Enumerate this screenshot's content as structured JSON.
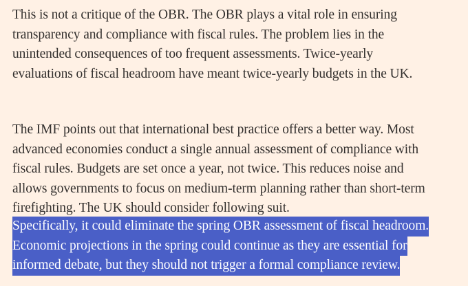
{
  "article": {
    "paragraphs": [
      {
        "lines": [
          "This is not a critique of the OBR. The OBR plays a vital role in ensuring",
          "transparency and compliance with fiscal rules. The problem lies in the",
          "unintended consequences of too frequent assessments. Twice-yearly",
          "evaluations of fiscal headroom have meant twice-yearly budgets in the UK."
        ],
        "selected": false
      },
      {
        "lines": [
          "The IMF points out that international best practice offers a better way. Most",
          "advanced economies conduct a single annual assessment of compliance with",
          "fiscal rules. Budgets are set once a year, not twice. This reduces noise and",
          "allows governments to focus on medium-term planning rather than short-term",
          "firefighting. The UK should consider following suit."
        ],
        "selected": false
      },
      {
        "lines": [
          "Specifically, it could eliminate the spring OBR assessment of fiscal headroom.",
          "Economic projections in the spring could continue as they are essential for",
          "informed debate, but they should not trigger a formal compliance review."
        ],
        "selected": true
      }
    ]
  },
  "colors": {
    "background": "#fff1e5",
    "text": "#33302e",
    "selection": "#4a5fc7"
  }
}
